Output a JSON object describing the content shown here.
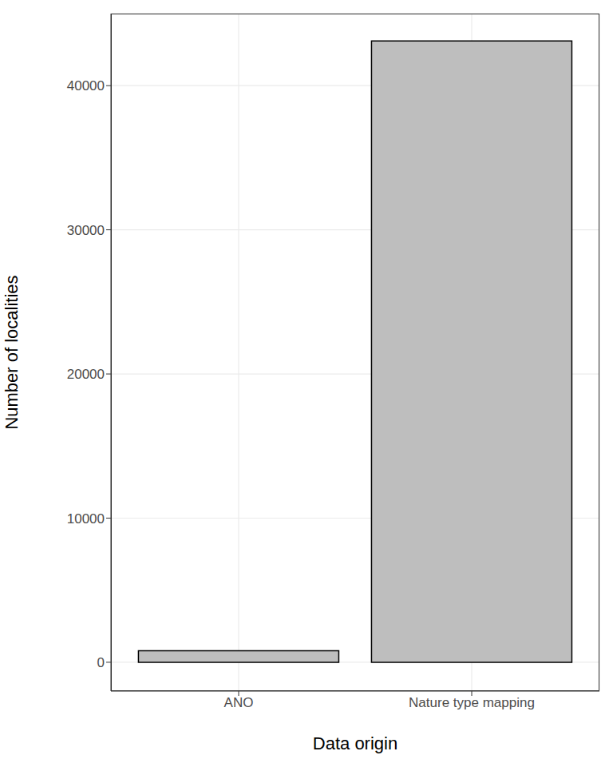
{
  "chart_data": {
    "type": "bar",
    "categories": [
      "ANO",
      "Nature type mapping"
    ],
    "values": [
      800,
      43100
    ],
    "color": "#bebebe",
    "x_label": "Data origin",
    "y_label": "Number of localities",
    "ylim": [
      -2000,
      45000
    ],
    "yticks": [
      0,
      10000,
      20000,
      30000,
      40000
    ],
    "grid": true
  }
}
